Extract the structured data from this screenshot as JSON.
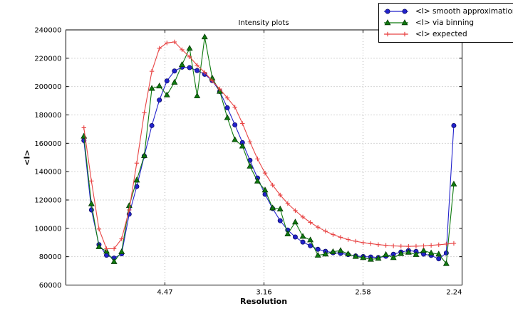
{
  "title": "Intensity plots",
  "colors": {
    "background": "#ffffff",
    "axis": "#000000",
    "grid": "#ababab",
    "blue_series": "#2222cc",
    "green_series": "#0f7a0f",
    "red_series": "#e84444"
  },
  "chart_data": {
    "type": "line",
    "title": "Intensity plots",
    "xlabel": "Resolution",
    "ylabel": "<I>",
    "grid": true,
    "legend_position": "top-right",
    "x_axis": {
      "label": "Resolution",
      "range": [
        0,
        0.2
      ],
      "ticks": [
        {
          "value": 0.05,
          "label": "4.47"
        },
        {
          "value": 0.1,
          "label": "3.16"
        },
        {
          "value": 0.15,
          "label": "2.58"
        },
        {
          "value": 0.2,
          "label": "2.24"
        }
      ]
    },
    "y_axis": {
      "label": "<I>",
      "range": [
        60000,
        240000
      ],
      "ticks": [
        {
          "value": 60000,
          "label": "60000"
        },
        {
          "value": 80000,
          "label": "80000"
        },
        {
          "value": 100000,
          "label": "100000"
        },
        {
          "value": 120000,
          "label": "120000"
        },
        {
          "value": 140000,
          "label": "140000"
        },
        {
          "value": 160000,
          "label": "160000"
        },
        {
          "value": 180000,
          "label": "180000"
        },
        {
          "value": 200000,
          "label": "200000"
        },
        {
          "value": 220000,
          "label": "220000"
        },
        {
          "value": 240000,
          "label": "240000"
        }
      ]
    },
    "x": [
      0.00908,
      0.01289,
      0.0167,
      0.02051,
      0.02432,
      0.02814,
      0.03195,
      0.03576,
      0.03957,
      0.04338,
      0.04719,
      0.051,
      0.05482,
      0.05863,
      0.06244,
      0.06625,
      0.07006,
      0.07387,
      0.07768,
      0.0815,
      0.08531,
      0.08912,
      0.09293,
      0.09674,
      0.10055,
      0.10436,
      0.10818,
      0.11199,
      0.1158,
      0.11961,
      0.12342,
      0.12723,
      0.13104,
      0.13486,
      0.13867,
      0.14248,
      0.14629,
      0.1501,
      0.15391,
      0.15772,
      0.16154,
      0.16535,
      0.16916,
      0.17297,
      0.17678,
      0.18059,
      0.1844,
      0.18822,
      0.19203,
      0.19584
    ],
    "series": [
      {
        "name": "<I> smooth approximation",
        "marker": "circle",
        "color": "#2222cc",
        "values": [
          162000,
          113000,
          88500,
          81000,
          79000,
          82000,
          110000,
          129500,
          151000,
          172500,
          190500,
          204000,
          211000,
          213700,
          213400,
          211300,
          208700,
          204200,
          196600,
          185000,
          173000,
          160500,
          148000,
          135500,
          124000,
          114000,
          105400,
          98800,
          93900,
          90300,
          87700,
          85200,
          83800,
          82800,
          82300,
          81500,
          80500,
          80100,
          79800,
          79400,
          80300,
          81700,
          83300,
          84300,
          83700,
          81800,
          80900,
          78500,
          82600,
          172500
        ]
      },
      {
        "name": "<I> via binning",
        "marker": "triangle",
        "color": "#0f7a0f",
        "values": [
          165000,
          117300,
          87000,
          83800,
          76500,
          83500,
          116000,
          134000,
          151300,
          198700,
          200400,
          194100,
          203000,
          215500,
          227000,
          193400,
          235000,
          206000,
          196600,
          178000,
          162500,
          158000,
          143800,
          133300,
          127000,
          114400,
          113600,
          96000,
          104400,
          94300,
          91800,
          81000,
          81800,
          83500,
          84300,
          82000,
          80100,
          79300,
          78100,
          78800,
          81500,
          79300,
          82100,
          83100,
          81500,
          84300,
          82600,
          81800,
          75100,
          131200
        ]
      },
      {
        "name": "<I> expected",
        "marker": "plus",
        "color": "#e84444",
        "values": [
          171000,
          133400,
          99500,
          85600,
          85600,
          92600,
          113000,
          146000,
          181500,
          210800,
          227000,
          230800,
          231500,
          226000,
          221000,
          215000,
          210000,
          204100,
          198300,
          192000,
          185500,
          174000,
          161000,
          149000,
          139000,
          130500,
          123500,
          117500,
          112500,
          108000,
          104200,
          100800,
          98000,
          95600,
          93700,
          92100,
          90900,
          89900,
          89200,
          88500,
          88000,
          87600,
          87400,
          87300,
          87400,
          87600,
          88000,
          88400,
          88900,
          89400
        ]
      }
    ]
  },
  "legend": {
    "entries": [
      {
        "label": "<I> smooth approximation"
      },
      {
        "label": "<I> via binning"
      },
      {
        "label": "<I> expected"
      }
    ]
  }
}
